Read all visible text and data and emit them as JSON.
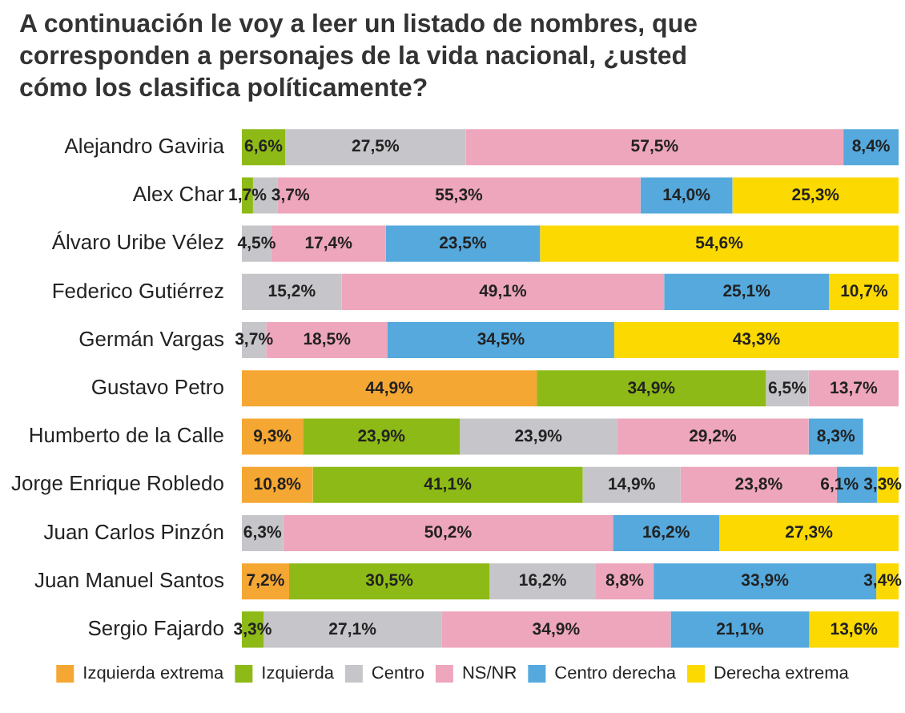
{
  "chart_data": {
    "type": "bar",
    "orientation": "horizontal",
    "stacked": true,
    "title": "A continuación le voy a leer un listado de nombres, que corresponden a personajes de la vida nacional, ¿usted cómo los clasifica políticamente?",
    "categories": [
      "Alejandro Gaviria",
      "Alex Char",
      "Álvaro Uribe Vélez",
      "Federico Gutiérrez",
      "Germán Vargas",
      "Gustavo Petro",
      "Humberto de la Calle",
      "Jorge Enrique Robledo",
      "Juan Carlos Pinzón",
      "Juan Manuel Santos",
      "Sergio Fajardo"
    ],
    "xlim": [
      0,
      100
    ],
    "tick_labels": "y",
    "grid": false,
    "legend": "bottom",
    "series": [
      {
        "name": "Izquierda extrema",
        "color": "#f5a733",
        "values": [
          null,
          null,
          null,
          null,
          null,
          44.9,
          9.3,
          10.8,
          null,
          7.2,
          null
        ],
        "value_labels": [
          null,
          null,
          null,
          null,
          null,
          "44,9%",
          "9,3%",
          "10,8%",
          null,
          "7,2%",
          null
        ]
      },
      {
        "name": "Izquierda",
        "color": "#8dba17",
        "values": [
          6.6,
          1.7,
          null,
          null,
          null,
          34.9,
          23.9,
          41.1,
          null,
          30.5,
          3.3
        ],
        "value_labels": [
          "6,6%",
          "1,7%",
          null,
          null,
          null,
          "34,9%",
          "23,9%",
          "41,1%",
          null,
          "30,5%",
          "3,3%"
        ]
      },
      {
        "name": "Centro",
        "color": "#c5c5ca",
        "values": [
          27.5,
          3.7,
          4.5,
          15.2,
          3.7,
          6.5,
          23.9,
          14.9,
          6.3,
          16.2,
          27.1
        ],
        "value_labels": [
          "27,5%",
          "3,7%",
          "4,5%",
          "15,2%",
          "3,7%",
          "6,5%",
          "23,9%",
          "14,9%",
          "6,3%",
          "16,2%",
          "27,1%"
        ]
      },
      {
        "name": "NS/NR",
        "color": "#eea6bc",
        "values": [
          57.5,
          55.3,
          17.4,
          49.1,
          18.5,
          13.7,
          29.2,
          23.8,
          50.2,
          8.8,
          34.9
        ],
        "value_labels": [
          "57,5%",
          "55,3%",
          "17,4%",
          "49,1%",
          "18,5%",
          "13,7%",
          "29,2%",
          "23,8%",
          "50,2%",
          "8,8%",
          "34,9%"
        ]
      },
      {
        "name": "Centro derecha",
        "color": "#55a9dd",
        "values": [
          8.4,
          14.0,
          23.5,
          25.1,
          34.5,
          null,
          8.3,
          6.1,
          16.2,
          33.9,
          21.1
        ],
        "value_labels": [
          "8,4%",
          "14,0%",
          "23,5%",
          "25,1%",
          "34,5%",
          null,
          "8,3%",
          "6,1%",
          "16,2%",
          "33,9%",
          "21,1%"
        ]
      },
      {
        "name": "Derecha extrema",
        "color": "#fcd900",
        "values": [
          null,
          25.3,
          54.6,
          10.7,
          43.3,
          null,
          null,
          3.3,
          27.3,
          3.4,
          13.6
        ],
        "value_labels": [
          null,
          "25,3%",
          "54,6%",
          "10,7%",
          "43,3%",
          null,
          null,
          "3,3%",
          "27,3%",
          "3,4%",
          "13,6%"
        ]
      }
    ]
  }
}
